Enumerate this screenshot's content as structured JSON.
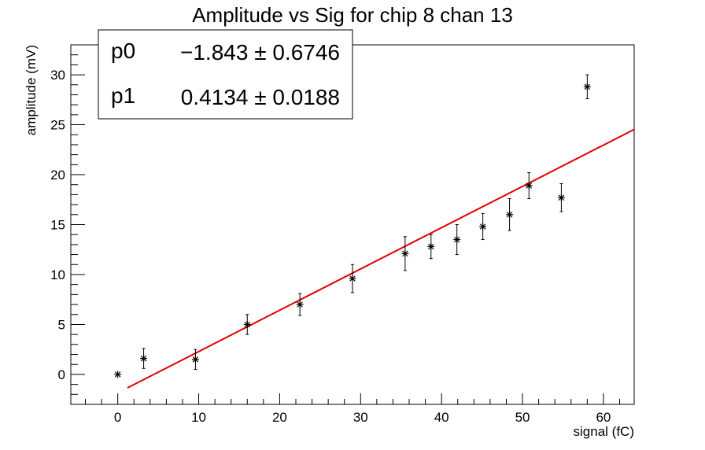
{
  "chart_data": {
    "type": "scatter",
    "title": "Amplitude vs Sig for chip 8 chan 13",
    "xlabel": "signal (fC)",
    "ylabel": "amplitude (mV)",
    "xlim": [
      -5.8,
      63.8
    ],
    "ylim": [
      -3,
      33
    ],
    "x_ticks": [
      0,
      10,
      20,
      30,
      40,
      50,
      60
    ],
    "y_ticks": [
      0,
      5,
      10,
      15,
      20,
      25,
      30
    ],
    "grid": false,
    "points": [
      {
        "x": 0.0,
        "y": 0.0,
        "err": 0.0
      },
      {
        "x": 3.2,
        "y": 1.6,
        "err": 1.0
      },
      {
        "x": 9.6,
        "y": 1.5,
        "err": 1.0
      },
      {
        "x": 16.0,
        "y": 5.0,
        "err": 1.0
      },
      {
        "x": 22.5,
        "y": 7.0,
        "err": 1.1
      },
      {
        "x": 29.0,
        "y": 9.6,
        "err": 1.4
      },
      {
        "x": 35.5,
        "y": 12.1,
        "err": 1.7
      },
      {
        "x": 38.7,
        "y": 12.8,
        "err": 1.2
      },
      {
        "x": 41.9,
        "y": 13.5,
        "err": 1.5
      },
      {
        "x": 45.1,
        "y": 14.8,
        "err": 1.3
      },
      {
        "x": 48.4,
        "y": 16.0,
        "err": 1.6
      },
      {
        "x": 50.8,
        "y": 18.9,
        "err": 1.3
      },
      {
        "x": 54.8,
        "y": 17.7,
        "err": 1.4
      },
      {
        "x": 58.0,
        "y": 28.8,
        "err": 1.2
      }
    ],
    "fit": {
      "color": "#e00000",
      "x_range": [
        1.2,
        63.8
      ],
      "p0": -1.843,
      "p1": 0.4134
    },
    "stats_box": {
      "rows": [
        {
          "name": "p0",
          "value": "−1.843 ± 0.6746"
        },
        {
          "name": "p1",
          "value": "0.4134 ± 0.0188"
        }
      ]
    }
  }
}
